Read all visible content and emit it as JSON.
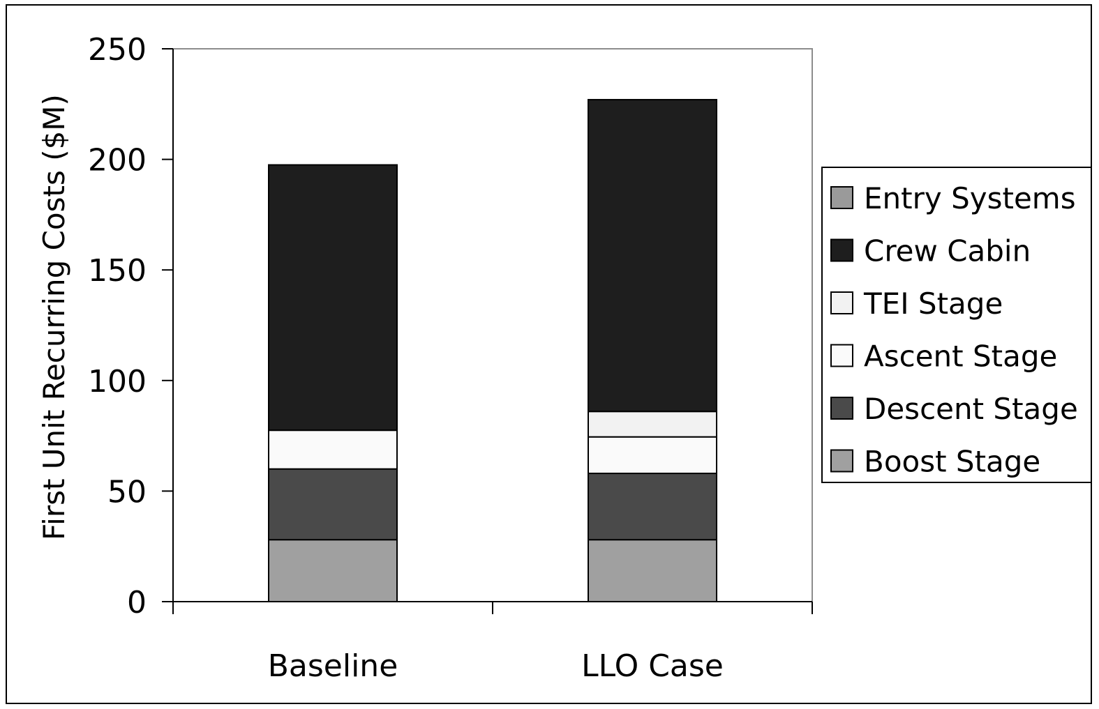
{
  "chart_data": {
    "type": "bar",
    "stacked": true,
    "title": "",
    "xlabel": "",
    "ylabel": "First Unit Recurring Costs ($M)",
    "ylim": [
      0,
      250
    ],
    "yticks": [
      "0",
      "50",
      "100",
      "150",
      "200",
      "250"
    ],
    "grid": false,
    "legend_position": "right",
    "categories": [
      "Baseline",
      "LLO Case"
    ],
    "series": [
      {
        "name": "Boost Stage",
        "color": "#a0a0a0",
        "values": [
          28,
          28
        ]
      },
      {
        "name": "Descent Stage",
        "color": "#4a4a4a",
        "values": [
          32,
          30
        ]
      },
      {
        "name": "Ascent Stage",
        "color": "#fafafa",
        "values": [
          17.5,
          16.5
        ]
      },
      {
        "name": "TEI Stage",
        "color": "#f2f2f2",
        "values": [
          0,
          11.5
        ]
      },
      {
        "name": "Crew Cabin",
        "color": "#1e1e1e",
        "values": [
          120,
          141
        ]
      },
      {
        "name": "Entry Systems",
        "color": "#9a9a9a",
        "values": [
          0,
          0
        ]
      }
    ],
    "legend_order": [
      "Entry Systems",
      "Crew Cabin",
      "TEI Stage",
      "Ascent Stage",
      "Descent Stage",
      "Boost Stage"
    ]
  }
}
